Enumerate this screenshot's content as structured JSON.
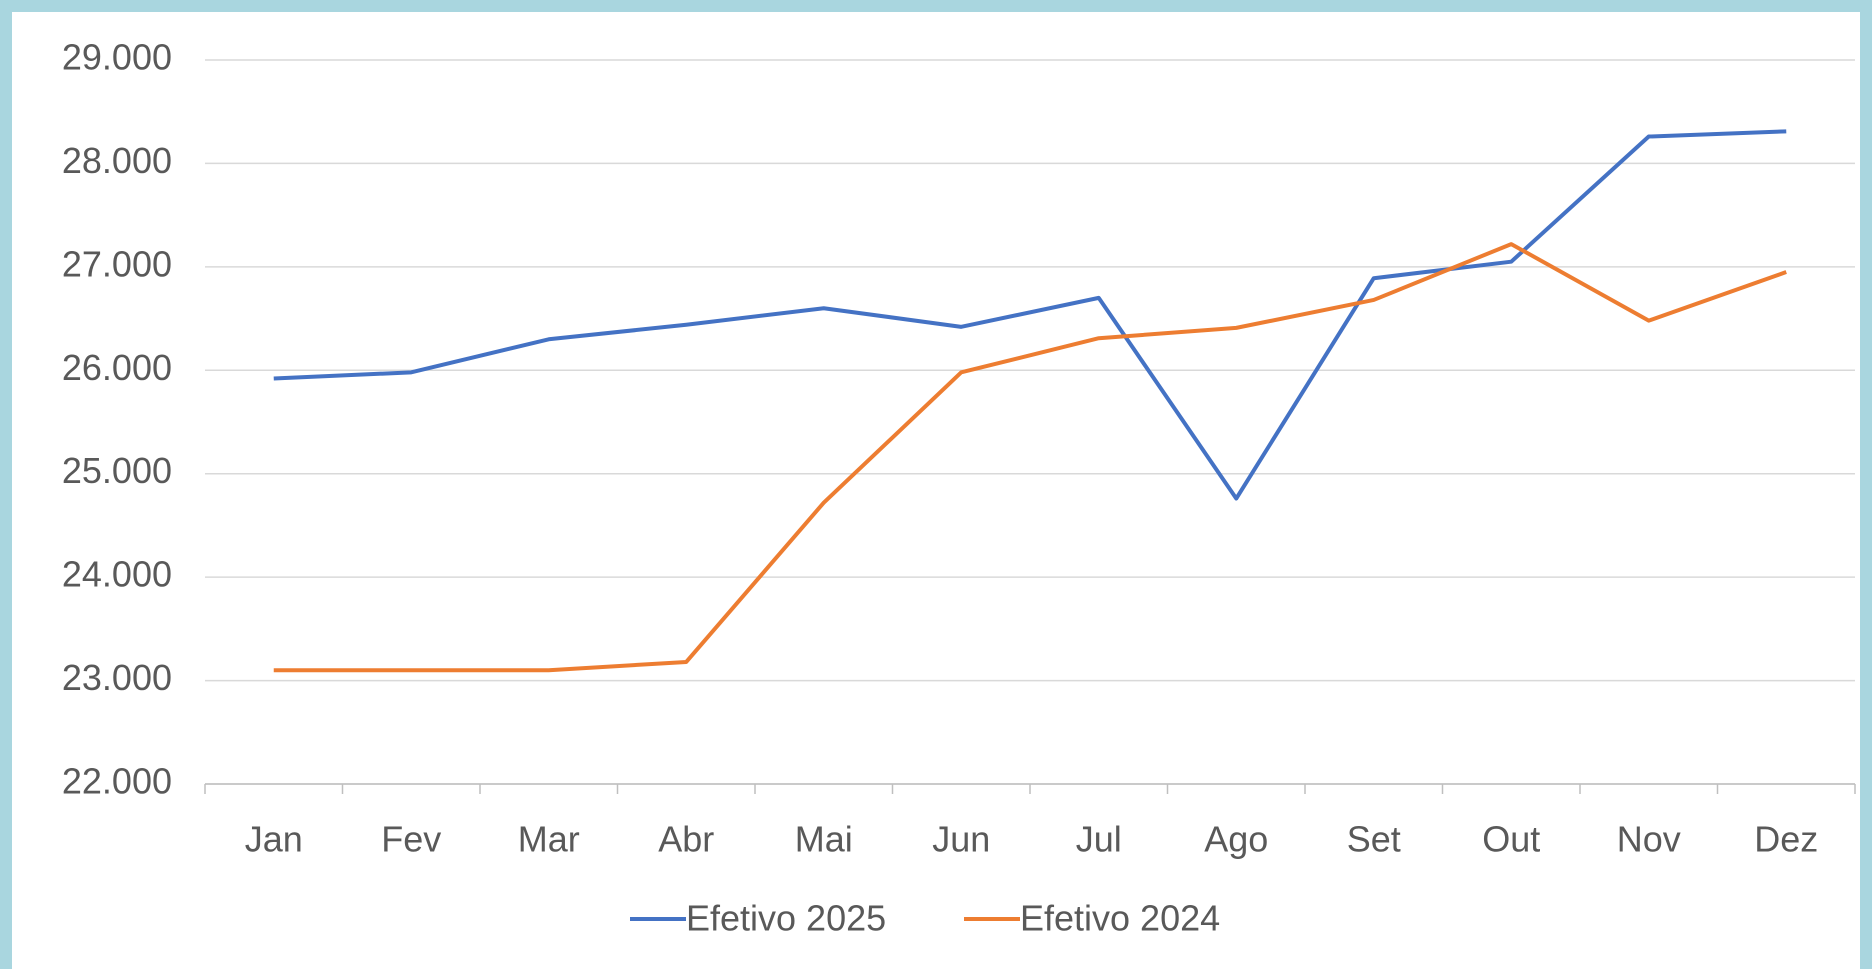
{
  "chart_data": {
    "type": "line",
    "categories": [
      "Jan",
      "Fev",
      "Mar",
      "Abr",
      "Mai",
      "Jun",
      "Jul",
      "Ago",
      "Set",
      "Out",
      "Nov",
      "Dez"
    ],
    "series": [
      {
        "name": "Efetivo 2025",
        "color": "#4472c4",
        "values": [
          25920,
          25980,
          26300,
          26440,
          26600,
          26420,
          26700,
          24760,
          26890,
          27050,
          28260,
          28310
        ]
      },
      {
        "name": "Efetivo 2024",
        "color": "#ed7d31",
        "values": [
          23100,
          23100,
          23100,
          23180,
          24720,
          25980,
          26310,
          26410,
          26680,
          27220,
          26480,
          26950
        ]
      }
    ],
    "ylim": [
      22000,
      29000
    ],
    "yticks": [
      {
        "value": 22000,
        "label": "22.000"
      },
      {
        "value": 23000,
        "label": "23.000"
      },
      {
        "value": 24000,
        "label": "24.000"
      },
      {
        "value": 25000,
        "label": "25.000"
      },
      {
        "value": 26000,
        "label": "26.000"
      },
      {
        "value": 27000,
        "label": "27.000"
      },
      {
        "value": 28000,
        "label": "28.000"
      },
      {
        "value": 29000,
        "label": "29.000"
      }
    ],
    "grid": true,
    "legend": "bottom"
  }
}
